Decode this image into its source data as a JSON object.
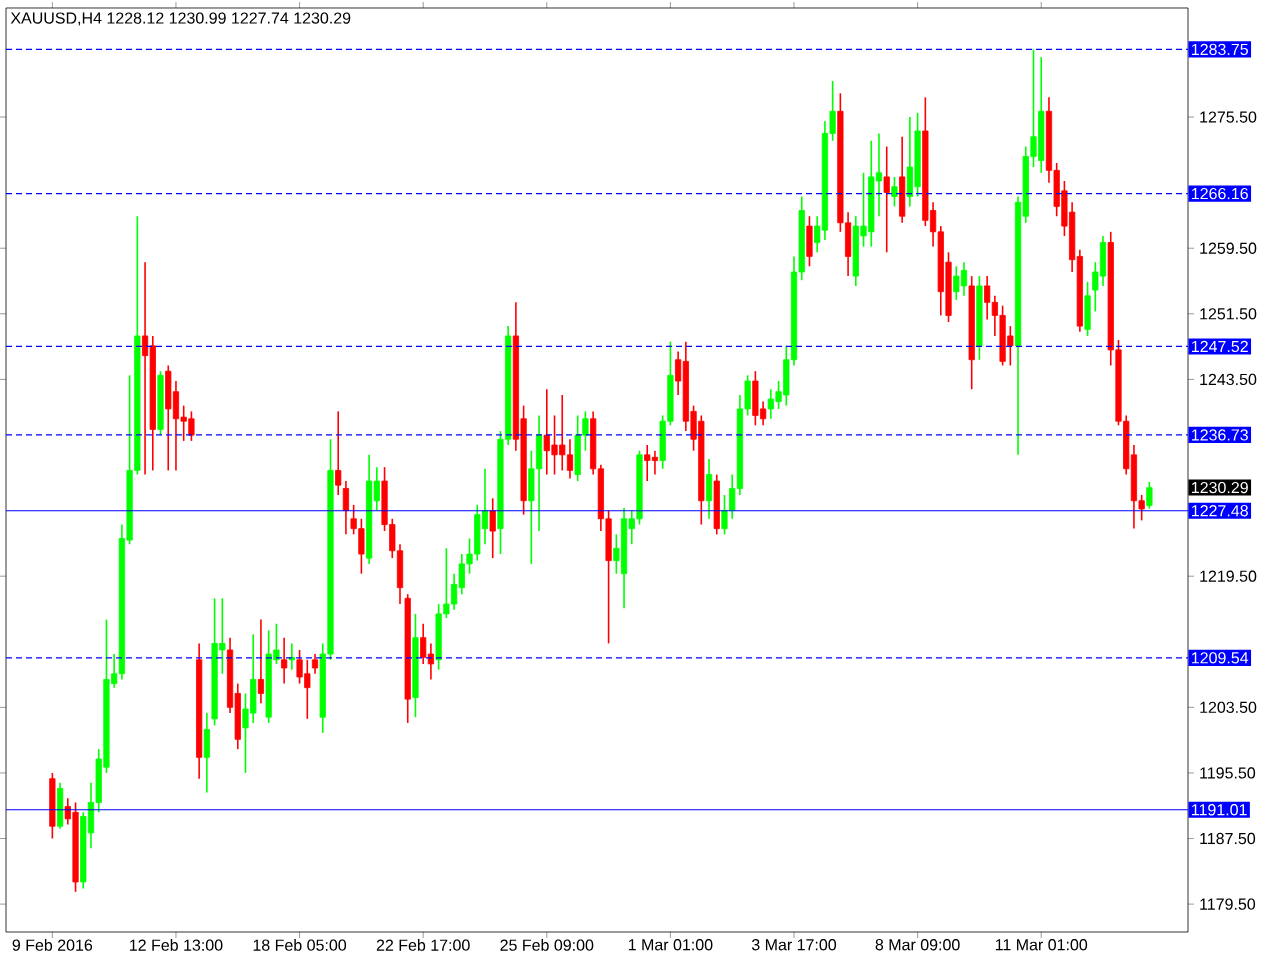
{
  "chart_data": {
    "type": "candlestick",
    "title": "XAUUSD,H4  1228.12 1230.99 1227.74 1230.29",
    "categories": [
      "9 Feb 2016",
      null,
      null,
      null,
      null,
      null,
      null,
      null,
      null,
      null,
      null,
      null,
      null,
      null,
      null,
      null,
      "12 Feb 13:00",
      null,
      null,
      null,
      null,
      null,
      null,
      null,
      null,
      null,
      null,
      null,
      null,
      null,
      null,
      null,
      "18 Feb 05:00",
      null,
      null,
      null,
      null,
      null,
      null,
      null,
      null,
      null,
      null,
      null,
      null,
      null,
      null,
      null,
      "22 Feb 17:00",
      null,
      null,
      null,
      null,
      null,
      null,
      null,
      null,
      null,
      null,
      null,
      null,
      null,
      null,
      null,
      "25 Feb 09:00",
      null,
      null,
      null,
      null,
      null,
      null,
      null,
      null,
      null,
      null,
      null,
      null,
      null,
      null,
      null,
      "1 Mar 01:00",
      null,
      null,
      null,
      null,
      null,
      null,
      null,
      null,
      null,
      null,
      null,
      null,
      null,
      null,
      null,
      "3 Mar 17:00",
      null,
      null,
      null,
      null,
      null,
      null,
      null,
      null,
      null,
      null,
      null,
      null,
      null,
      null,
      null,
      "8 Mar 09:00",
      null,
      null,
      null,
      null,
      null,
      null,
      null,
      null,
      null,
      null,
      null,
      null,
      null,
      null,
      null,
      "11 Mar 01:00",
      null,
      null,
      null,
      null,
      null,
      null,
      null,
      null,
      null,
      null,
      null,
      null,
      null,
      null
    ],
    "ohlc": [
      [
        1194.8,
        1195.5,
        1187.5,
        1189.0
      ],
      [
        1189.0,
        1194.3,
        1188.7,
        1193.6
      ],
      [
        1191.4,
        1192.4,
        1189.2,
        1189.9
      ],
      [
        1190.7,
        1191.9,
        1181.0,
        1182.2
      ],
      [
        1182.2,
        1190.7,
        1181.4,
        1190.2
      ],
      [
        1188.2,
        1194.3,
        1186.3,
        1191.9
      ],
      [
        1191.9,
        1198.4,
        1190.7,
        1197.2
      ],
      [
        1196.2,
        1214.2,
        1195.5,
        1206.9
      ],
      [
        1206.4,
        1210.0,
        1205.9,
        1207.6
      ],
      [
        1207.6,
        1225.8,
        1206.9,
        1224.1
      ],
      [
        1223.9,
        1244.0,
        1223.4,
        1232.4
      ],
      [
        1232.4,
        1263.4,
        1231.9,
        1248.8
      ],
      [
        1248.8,
        1257.8,
        1231.9,
        1246.4
      ],
      [
        1247.6,
        1248.8,
        1232.4,
        1237.4
      ],
      [
        1237.4,
        1244.5,
        1236.7,
        1244.0
      ],
      [
        1244.5,
        1245.2,
        1232.4,
        1239.9
      ],
      [
        1242.0,
        1243.3,
        1232.4,
        1238.7
      ],
      [
        1238.9,
        1240.3,
        1236.0,
        1238.4
      ],
      [
        1238.7,
        1239.6,
        1236.0,
        1236.7
      ],
      [
        1209.3,
        1211.3,
        1194.8,
        1197.4
      ],
      [
        1197.4,
        1202.8,
        1193.1,
        1200.8
      ],
      [
        1202.1,
        1216.8,
        1201.3,
        1211.3
      ],
      [
        1210.5,
        1216.8,
        1207.6,
        1211.3
      ],
      [
        1210.5,
        1212.0,
        1202.8,
        1203.5
      ],
      [
        1205.2,
        1206.4,
        1198.4,
        1199.6
      ],
      [
        1201.0,
        1205.2,
        1195.5,
        1203.3
      ],
      [
        1202.8,
        1212.4,
        1201.6,
        1206.9
      ],
      [
        1206.9,
        1214.2,
        1204.0,
        1205.2
      ],
      [
        1202.3,
        1212.9,
        1201.6,
        1210.0
      ],
      [
        1209.3,
        1213.7,
        1208.8,
        1210.5
      ],
      [
        1209.3,
        1212.0,
        1206.4,
        1208.3
      ],
      [
        1209.3,
        1211.3,
        1208.1,
        1209.6
      ],
      [
        1209.3,
        1210.5,
        1206.4,
        1207.2
      ],
      [
        1207.6,
        1209.3,
        1202.1,
        1205.9
      ],
      [
        1209.3,
        1210.0,
        1207.6,
        1208.3
      ],
      [
        1202.3,
        1211.3,
        1200.4,
        1210.0
      ],
      [
        1210.0,
        1236.2,
        1209.3,
        1232.4
      ],
      [
        1232.4,
        1239.6,
        1229.4,
        1230.6
      ],
      [
        1230.2,
        1231.1,
        1224.6,
        1227.5
      ],
      [
        1226.5,
        1228.2,
        1224.6,
        1225.3
      ],
      [
        1225.3,
        1226.5,
        1219.8,
        1222.2
      ],
      [
        1221.7,
        1234.3,
        1221.0,
        1231.1
      ],
      [
        1228.7,
        1232.8,
        1227.5,
        1231.1
      ],
      [
        1231.1,
        1232.8,
        1225.0,
        1225.8
      ],
      [
        1225.8,
        1226.5,
        1221.7,
        1222.6
      ],
      [
        1222.6,
        1223.4,
        1216.1,
        1218.1
      ],
      [
        1216.8,
        1217.3,
        1201.6,
        1204.5
      ],
      [
        1204.7,
        1214.9,
        1202.3,
        1212.0
      ],
      [
        1212.0,
        1213.7,
        1208.8,
        1209.6
      ],
      [
        1210.0,
        1211.3,
        1206.9,
        1208.8
      ],
      [
        1209.3,
        1216.1,
        1208.1,
        1214.9
      ],
      [
        1214.9,
        1222.9,
        1214.4,
        1216.1
      ],
      [
        1216.1,
        1219.8,
        1215.4,
        1218.5
      ],
      [
        1218.1,
        1222.2,
        1217.3,
        1221.0
      ],
      [
        1221.0,
        1224.1,
        1219.8,
        1222.2
      ],
      [
        1222.2,
        1228.2,
        1221.4,
        1227.0
      ],
      [
        1225.3,
        1232.6,
        1223.4,
        1227.5
      ],
      [
        1227.5,
        1229.0,
        1221.7,
        1225.0
      ],
      [
        1225.3,
        1237.2,
        1222.2,
        1236.2
      ],
      [
        1236.2,
        1250.0,
        1235.5,
        1248.8
      ],
      [
        1248.8,
        1252.9,
        1234.8,
        1236.2
      ],
      [
        1238.7,
        1240.3,
        1227.0,
        1228.7
      ],
      [
        1228.7,
        1234.8,
        1221.0,
        1232.6
      ],
      [
        1232.6,
        1239.1,
        1225.0,
        1236.7
      ],
      [
        1236.7,
        1242.3,
        1231.9,
        1234.8
      ],
      [
        1235.5,
        1239.1,
        1231.9,
        1234.3
      ],
      [
        1235.5,
        1241.6,
        1232.4,
        1234.3
      ],
      [
        1234.3,
        1236.2,
        1231.4,
        1232.4
      ],
      [
        1231.9,
        1239.1,
        1231.1,
        1236.7
      ],
      [
        1236.7,
        1239.6,
        1234.8,
        1238.7
      ],
      [
        1238.7,
        1239.6,
        1231.9,
        1232.6
      ],
      [
        1232.6,
        1233.1,
        1225.0,
        1226.5
      ],
      [
        1226.5,
        1227.5,
        1211.3,
        1221.4
      ],
      [
        1221.4,
        1224.6,
        1219.8,
        1222.9
      ],
      [
        1219.8,
        1227.8,
        1215.6,
        1226.5
      ],
      [
        1225.3,
        1227.5,
        1223.4,
        1226.5
      ],
      [
        1226.5,
        1234.8,
        1225.8,
        1234.3
      ],
      [
        1234.3,
        1235.5,
        1231.1,
        1233.6
      ],
      [
        1234.0,
        1234.8,
        1231.9,
        1233.6
      ],
      [
        1233.6,
        1239.1,
        1232.6,
        1238.4
      ],
      [
        1238.4,
        1248.1,
        1237.9,
        1244.0
      ],
      [
        1245.9,
        1246.9,
        1241.6,
        1243.3
      ],
      [
        1245.7,
        1248.1,
        1237.2,
        1238.4
      ],
      [
        1239.6,
        1240.3,
        1234.8,
        1236.2
      ],
      [
        1238.4,
        1239.1,
        1225.8,
        1228.7
      ],
      [
        1228.7,
        1233.8,
        1226.5,
        1231.9
      ],
      [
        1231.1,
        1231.9,
        1224.6,
        1225.3
      ],
      [
        1225.3,
        1229.4,
        1224.6,
        1227.5
      ],
      [
        1227.5,
        1231.9,
        1226.5,
        1230.2
      ],
      [
        1230.2,
        1241.6,
        1229.4,
        1239.9
      ],
      [
        1239.9,
        1244.0,
        1239.1,
        1243.3
      ],
      [
        1243.3,
        1244.5,
        1237.9,
        1239.1
      ],
      [
        1239.9,
        1240.8,
        1237.9,
        1238.7
      ],
      [
        1239.9,
        1242.3,
        1238.7,
        1241.1
      ],
      [
        1240.8,
        1243.3,
        1239.9,
        1242.0
      ],
      [
        1241.6,
        1247.6,
        1240.3,
        1245.9
      ],
      [
        1245.9,
        1258.5,
        1245.2,
        1256.6
      ],
      [
        1256.6,
        1265.8,
        1255.6,
        1264.1
      ],
      [
        1262.2,
        1263.4,
        1257.3,
        1258.5
      ],
      [
        1260.2,
        1263.4,
        1259.0,
        1262.2
      ],
      [
        1261.7,
        1275.0,
        1260.5,
        1273.5
      ],
      [
        1273.5,
        1279.9,
        1272.6,
        1276.2
      ],
      [
        1276.2,
        1278.4,
        1261.5,
        1262.6
      ],
      [
        1262.6,
        1263.9,
        1256.1,
        1258.5
      ],
      [
        1256.1,
        1263.4,
        1254.9,
        1262.2
      ],
      [
        1261.0,
        1268.7,
        1259.7,
        1262.2
      ],
      [
        1261.5,
        1272.6,
        1259.7,
        1268.2
      ],
      [
        1267.7,
        1273.5,
        1263.4,
        1268.7
      ],
      [
        1268.2,
        1271.9,
        1259.0,
        1266.3
      ],
      [
        1265.8,
        1268.2,
        1264.6,
        1267.0
      ],
      [
        1268.2,
        1273.1,
        1262.6,
        1263.4
      ],
      [
        1265.8,
        1275.5,
        1264.6,
        1269.4
      ],
      [
        1267.0,
        1276.0,
        1265.8,
        1273.8
      ],
      [
        1273.8,
        1277.9,
        1262.2,
        1262.9
      ],
      [
        1264.1,
        1265.1,
        1259.7,
        1261.5
      ],
      [
        1261.5,
        1262.2,
        1251.3,
        1254.2
      ],
      [
        1257.8,
        1259.0,
        1250.5,
        1251.3
      ],
      [
        1254.2,
        1257.3,
        1253.2,
        1256.1
      ],
      [
        1254.9,
        1257.8,
        1253.7,
        1256.8
      ],
      [
        1254.9,
        1256.1,
        1242.3,
        1245.9
      ],
      [
        1247.6,
        1256.1,
        1245.9,
        1254.9
      ],
      [
        1254.9,
        1256.1,
        1250.8,
        1252.9
      ],
      [
        1252.9,
        1253.7,
        1248.8,
        1251.3
      ],
      [
        1251.3,
        1252.5,
        1245.2,
        1245.7
      ],
      [
        1248.8,
        1250.0,
        1245.2,
        1247.6
      ],
      [
        1247.6,
        1265.8,
        1234.3,
        1265.1
      ],
      [
        1263.4,
        1271.9,
        1262.6,
        1270.7
      ],
      [
        1270.7,
        1283.75,
        1269.4,
        1273.1
      ],
      [
        1270.2,
        1282.8,
        1268.7,
        1276.2
      ],
      [
        1276.2,
        1277.9,
        1267.5,
        1269.0
      ],
      [
        1269.0,
        1269.9,
        1263.4,
        1264.6
      ],
      [
        1266.5,
        1267.7,
        1261.0,
        1262.2
      ],
      [
        1263.9,
        1265.1,
        1256.6,
        1258.1
      ],
      [
        1258.5,
        1259.3,
        1249.3,
        1250.0
      ],
      [
        1249.6,
        1255.4,
        1248.8,
        1253.7
      ],
      [
        1254.4,
        1257.8,
        1251.8,
        1256.6
      ],
      [
        1256.1,
        1261.0,
        1254.9,
        1260.2
      ],
      [
        1260.2,
        1261.5,
        1245.2,
        1247.1
      ],
      [
        1247.1,
        1248.3,
        1237.9,
        1238.4
      ],
      [
        1238.4,
        1239.1,
        1231.9,
        1232.6
      ],
      [
        1234.3,
        1235.5,
        1225.3,
        1228.7
      ],
      [
        1228.7,
        1229.4,
        1226.3,
        1227.7
      ],
      [
        1228.12,
        1230.99,
        1227.74,
        1230.29
      ]
    ],
    "colors": [
      "#ff0000",
      "#00ff00",
      "#ff0000",
      "#ff0000",
      "#00ff00",
      "#00ff00",
      "#00ff00",
      "#00ff00",
      "#00ff00",
      "#00ff00",
      "#00ff00",
      "#00ff00",
      "#ff0000",
      "#ff0000",
      "#00ff00",
      "#ff0000",
      "#ff0000",
      "#ff0000",
      "#ff0000",
      "#ff0000",
      "#00ff00",
      "#00ff00",
      "#00ff00",
      "#ff0000",
      "#ff0000",
      "#00ff00",
      "#00ff00",
      "#ff0000",
      "#00ff00",
      "#00ff00",
      "#ff0000",
      "#00ff00",
      "#ff0000",
      "#ff0000",
      "#ff0000",
      "#00ff00",
      "#00ff00",
      "#ff0000",
      "#ff0000",
      "#ff0000",
      "#ff0000",
      "#00ff00",
      "#00ff00",
      "#ff0000",
      "#ff0000",
      "#ff0000",
      "#ff0000",
      "#00ff00",
      "#ff0000",
      "#ff0000",
      "#00ff00",
      "#00ff00",
      "#00ff00",
      "#00ff00",
      "#00ff00",
      "#00ff00",
      "#00ff00",
      "#ff0000",
      "#00ff00",
      "#00ff00",
      "#ff0000",
      "#ff0000",
      "#00ff00",
      "#00ff00",
      "#ff0000",
      "#ff0000",
      "#ff0000",
      "#ff0000",
      "#00ff00",
      "#00ff00",
      "#ff0000",
      "#ff0000",
      "#ff0000",
      "#00ff00",
      "#00ff00",
      "#00ff00",
      "#00ff00",
      "#ff0000",
      "#ff0000",
      "#00ff00",
      "#00ff00",
      "#ff0000",
      "#ff0000",
      "#ff0000",
      "#ff0000",
      "#00ff00",
      "#ff0000",
      "#00ff00",
      "#00ff00",
      "#00ff00",
      "#00ff00",
      "#ff0000",
      "#ff0000",
      "#00ff00",
      "#00ff00",
      "#00ff00",
      "#00ff00",
      "#00ff00",
      "#ff0000",
      "#00ff00",
      "#00ff00",
      "#00ff00",
      "#ff0000",
      "#ff0000",
      "#00ff00",
      "#00ff00",
      "#00ff00",
      "#00ff00",
      "#ff0000",
      "#00ff00",
      "#ff0000",
      "#00ff00",
      "#00ff00",
      "#ff0000",
      "#ff0000",
      "#ff0000",
      "#ff0000",
      "#00ff00",
      "#00ff00",
      "#ff0000",
      "#00ff00",
      "#ff0000",
      "#ff0000",
      "#ff0000",
      "#ff0000",
      "#00ff00",
      "#00ff00",
      "#00ff00",
      "#00ff00",
      "#ff0000",
      "#ff0000",
      "#ff0000",
      "#ff0000",
      "#ff0000",
      "#00ff00",
      "#00ff00",
      "#00ff00",
      "#ff0000",
      "#ff0000",
      "#ff0000",
      "#ff0000",
      "#ff0000",
      "#00ff00"
    ],
    "ylim": [
      1176.1,
      1288.8
    ],
    "yticks": [
      {
        "value": 1179.5,
        "label": "1179.50"
      },
      {
        "value": 1187.5,
        "label": "1187.50"
      },
      {
        "value": 1195.5,
        "label": "1195.50"
      },
      {
        "value": 1203.5,
        "label": "1203.50"
      },
      {
        "value": 1219.5,
        "label": "1219.50"
      },
      {
        "value": 1243.5,
        "label": "1243.50"
      },
      {
        "value": 1251.5,
        "label": "1251.50"
      },
      {
        "value": 1259.5,
        "label": "1259.50"
      },
      {
        "value": 1275.5,
        "label": "1275.50"
      }
    ],
    "ref_lines": [
      {
        "axis": "y",
        "value": 1283.75,
        "label": "1283.75",
        "color": "#0000ff",
        "line_style": "dashed"
      },
      {
        "axis": "y",
        "value": 1266.16,
        "label": "1266.16",
        "color": "#0000ff",
        "line_style": "dashed"
      },
      {
        "axis": "y",
        "value": 1247.52,
        "label": "1247.52",
        "color": "#0000ff",
        "line_style": "dashed"
      },
      {
        "axis": "y",
        "value": 1236.73,
        "label": "1236.73",
        "color": "#0000ff",
        "line_style": "dashed"
      },
      {
        "axis": "y",
        "value": 1227.48,
        "label": "1227.48",
        "color": "#0000ff",
        "line_style": "solid"
      },
      {
        "axis": "y",
        "value": 1209.54,
        "label": "1209.54",
        "color": "#0000ff",
        "line_style": "dashed"
      },
      {
        "axis": "y",
        "value": 1191.01,
        "label": "1191.01",
        "color": "#0000ff",
        "line_style": "solid"
      }
    ],
    "annotations": [
      "1230.29"
    ]
  }
}
